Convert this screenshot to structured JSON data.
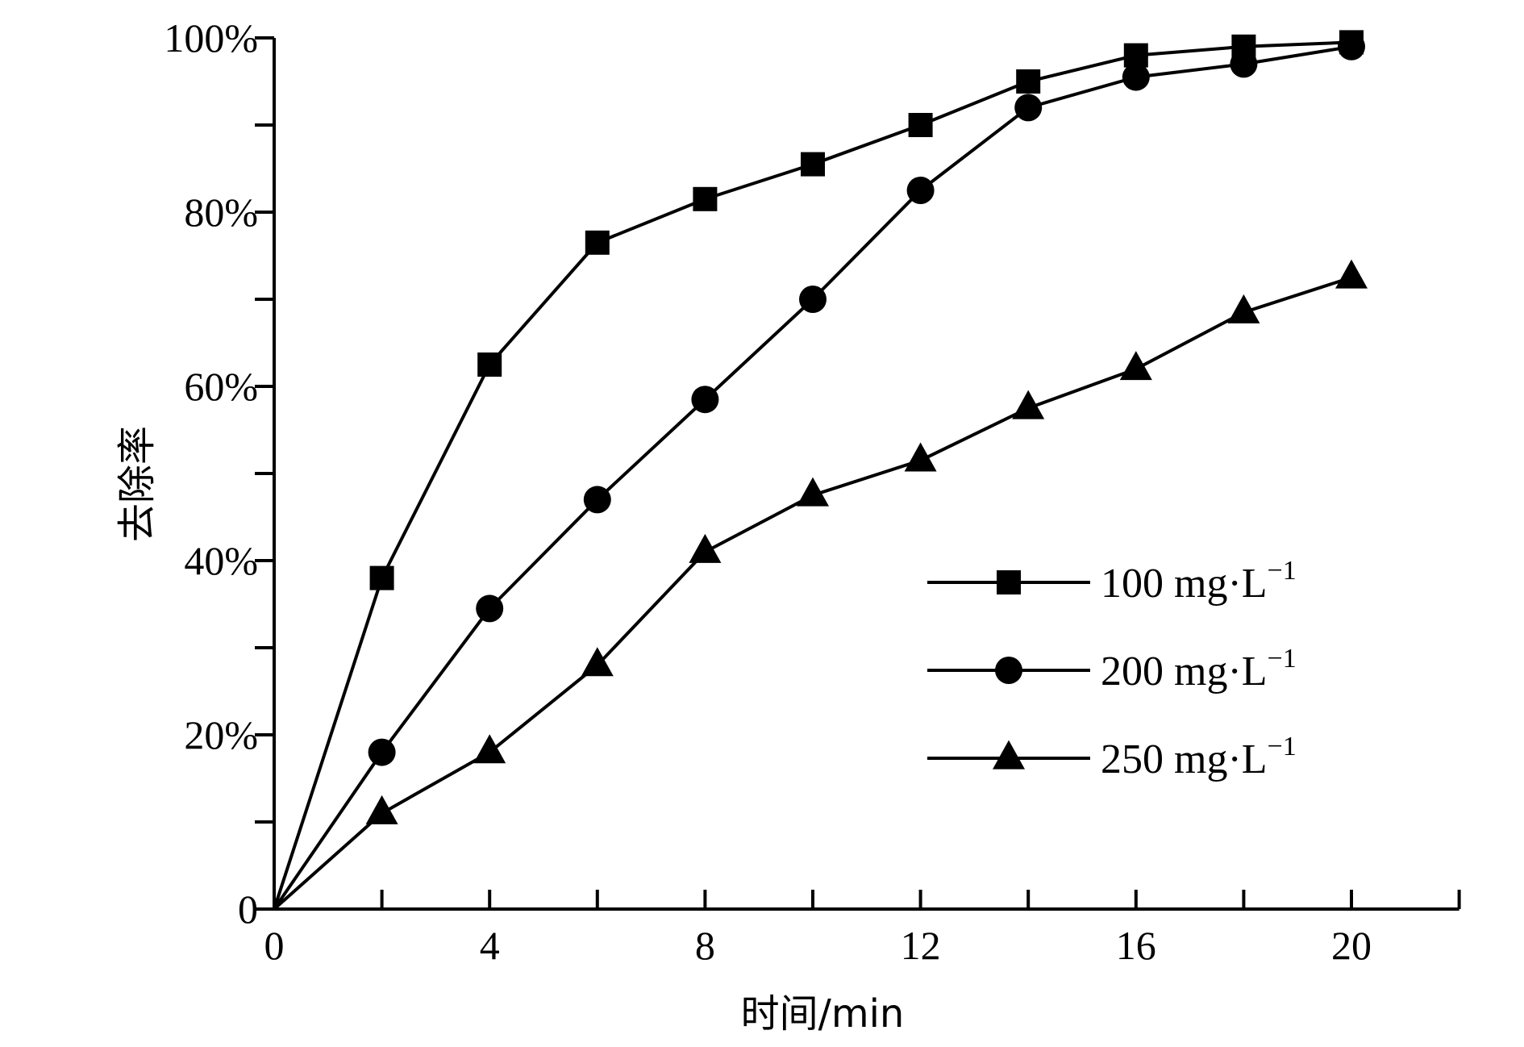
{
  "chart_data": {
    "type": "line",
    "xlabel": "时间/min",
    "ylabel": "去除率",
    "xlim": [
      0,
      22
    ],
    "ylim": [
      0,
      100
    ],
    "x_major_ticks": [
      0,
      4,
      8,
      12,
      16,
      20
    ],
    "x_minor_ticks": [
      2,
      6,
      10,
      14,
      18,
      22
    ],
    "y_major_ticks": [
      0,
      20,
      40,
      60,
      80,
      100
    ],
    "y_minor_ticks": [
      10,
      30,
      50,
      70,
      90
    ],
    "x_tick_labels": [
      "0",
      "4",
      "8",
      "12",
      "16",
      "20"
    ],
    "y_tick_labels": [
      "0",
      "20%",
      "40%",
      "60%",
      "80%",
      "100%"
    ],
    "legend_position": "center-right",
    "series": [
      {
        "name": "100 mg·L⁻¹",
        "label_main": "100 mg·L",
        "label_sup": "−1",
        "marker": "square",
        "x": [
          0,
          2,
          4,
          6,
          8,
          10,
          12,
          14,
          16,
          18,
          20
        ],
        "values": [
          0,
          38,
          62.5,
          76.5,
          81.5,
          85.5,
          90,
          95,
          98,
          99,
          99.5
        ]
      },
      {
        "name": "200 mg·L⁻¹",
        "label_main": "200 mg·L",
        "label_sup": "−1",
        "marker": "circle",
        "x": [
          0,
          2,
          4,
          6,
          8,
          10,
          12,
          14,
          16,
          18,
          20
        ],
        "values": [
          0,
          18,
          34.5,
          47,
          58.5,
          70,
          82.5,
          92,
          95.5,
          97,
          99
        ]
      },
      {
        "name": "250 mg·L⁻¹",
        "label_main": "250 mg·L",
        "label_sup": "−1",
        "marker": "triangle",
        "x": [
          0,
          2,
          4,
          6,
          8,
          10,
          12,
          14,
          16,
          18,
          20
        ],
        "values": [
          0,
          11,
          18,
          28,
          41,
          47.5,
          51.5,
          57.5,
          62,
          68.5,
          72.5
        ]
      }
    ]
  }
}
